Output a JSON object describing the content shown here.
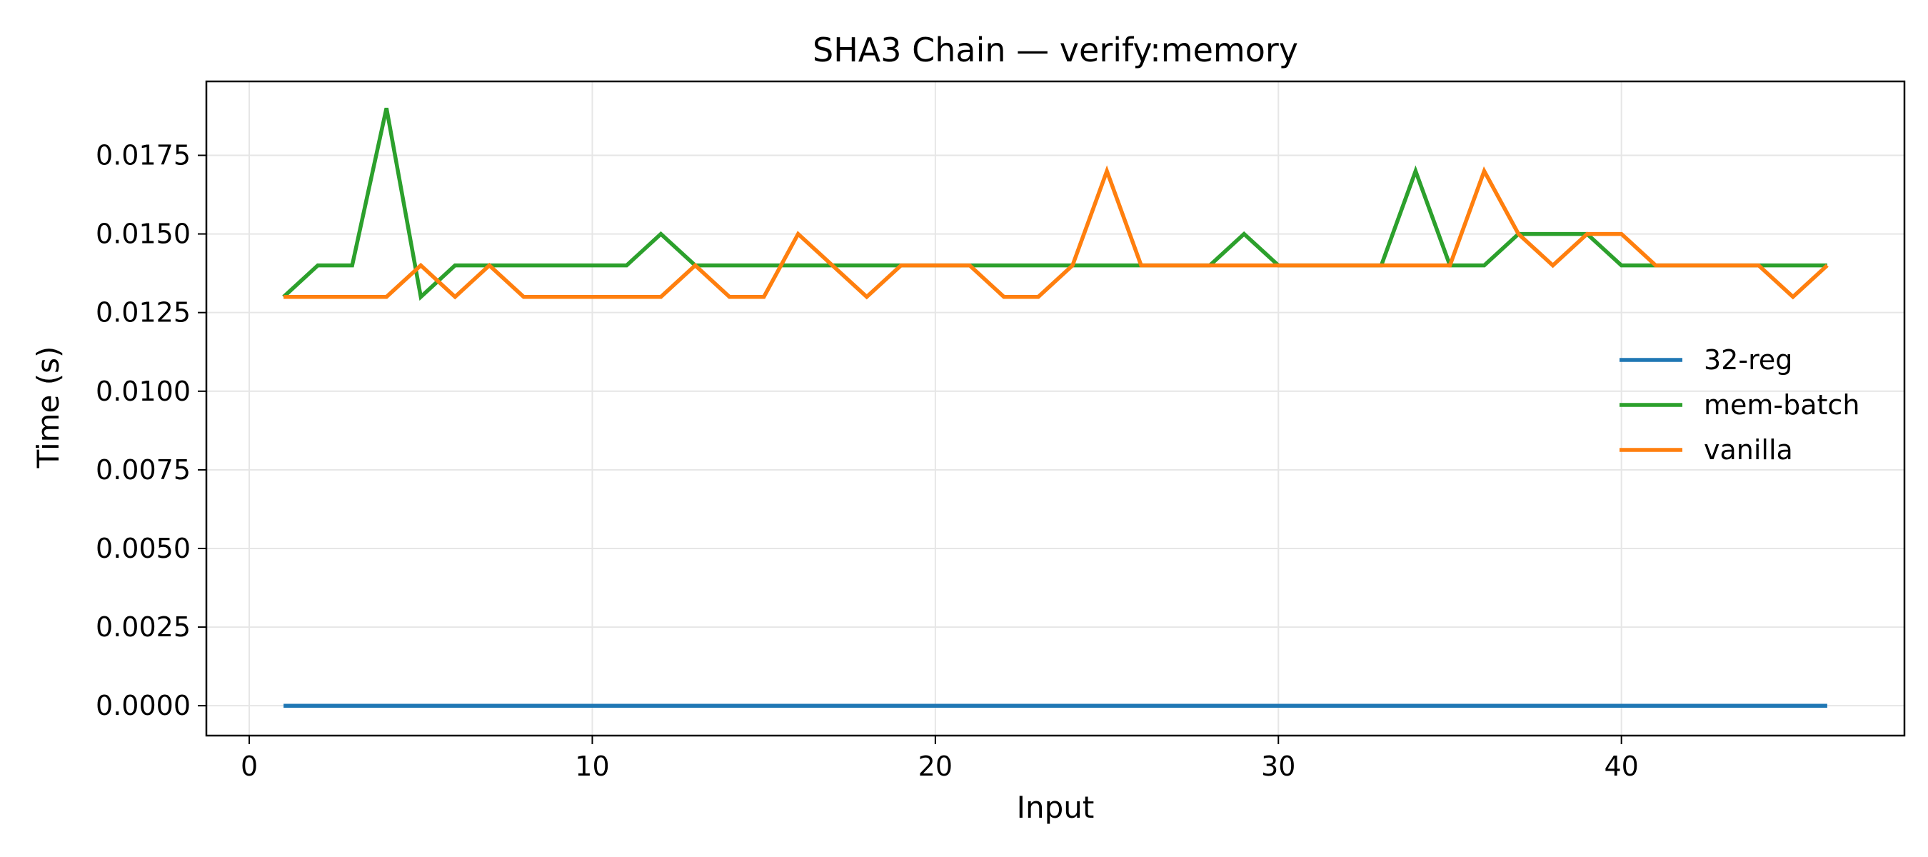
{
  "chart_data": {
    "type": "line",
    "title": "SHA3 Chain — verify:memory",
    "xlabel": "Input",
    "ylabel": "Time (s)",
    "xlim": [
      -1.25,
      48.25
    ],
    "ylim": [
      -0.00095,
      0.01985
    ],
    "xticks": [
      0,
      10,
      20,
      30,
      40
    ],
    "yticks": [
      0.0,
      0.0025,
      0.005,
      0.0075,
      0.01,
      0.0125,
      0.015,
      0.0175
    ],
    "ytick_labels": [
      "0.0000",
      "0.0025",
      "0.0050",
      "0.0075",
      "0.0100",
      "0.0125",
      "0.0150",
      "0.0175"
    ],
    "grid": true,
    "legend_position": "center-right",
    "x": [
      1,
      2,
      3,
      4,
      5,
      6,
      7,
      8,
      9,
      10,
      11,
      12,
      13,
      14,
      15,
      16,
      17,
      18,
      19,
      20,
      21,
      22,
      23,
      24,
      25,
      26,
      27,
      28,
      29,
      30,
      31,
      32,
      33,
      34,
      35,
      36,
      37,
      38,
      39,
      40,
      41,
      42,
      43,
      44,
      45,
      46
    ],
    "series": [
      {
        "name": "32-reg",
        "color": "#1f77b4",
        "values": [
          0,
          0,
          0,
          0,
          0,
          0,
          0,
          0,
          0,
          0,
          0,
          0,
          0,
          0,
          0,
          0,
          0,
          0,
          0,
          0,
          0,
          0,
          0,
          0,
          0,
          0,
          0,
          0,
          0,
          0,
          0,
          0,
          0,
          0,
          0,
          0,
          0,
          0,
          0,
          0,
          0,
          0,
          0,
          0,
          0,
          0
        ]
      },
      {
        "name": "mem-batch",
        "color": "#2ca02c",
        "values": [
          0.013,
          0.014,
          0.014,
          0.019,
          0.013,
          0.014,
          0.014,
          0.014,
          0.014,
          0.014,
          0.014,
          0.015,
          0.014,
          0.014,
          0.014,
          0.014,
          0.014,
          0.014,
          0.014,
          0.014,
          0.014,
          0.014,
          0.014,
          0.014,
          0.014,
          0.014,
          0.014,
          0.014,
          0.015,
          0.014,
          0.014,
          0.014,
          0.014,
          0.017,
          0.014,
          0.014,
          0.015,
          0.015,
          0.015,
          0.014,
          0.014,
          0.014,
          0.014,
          0.014,
          0.014,
          0.014
        ]
      },
      {
        "name": "vanilla",
        "color": "#ff7f0e",
        "values": [
          0.013,
          0.013,
          0.013,
          0.013,
          0.014,
          0.013,
          0.014,
          0.013,
          0.013,
          0.013,
          0.013,
          0.013,
          0.014,
          0.013,
          0.013,
          0.015,
          0.014,
          0.013,
          0.014,
          0.014,
          0.014,
          0.013,
          0.013,
          0.014,
          0.017,
          0.014,
          0.014,
          0.014,
          0.014,
          0.014,
          0.014,
          0.014,
          0.014,
          0.014,
          0.014,
          0.017,
          0.015,
          0.014,
          0.015,
          0.015,
          0.014,
          0.014,
          0.014,
          0.014,
          0.013,
          0.014
        ]
      }
    ]
  }
}
